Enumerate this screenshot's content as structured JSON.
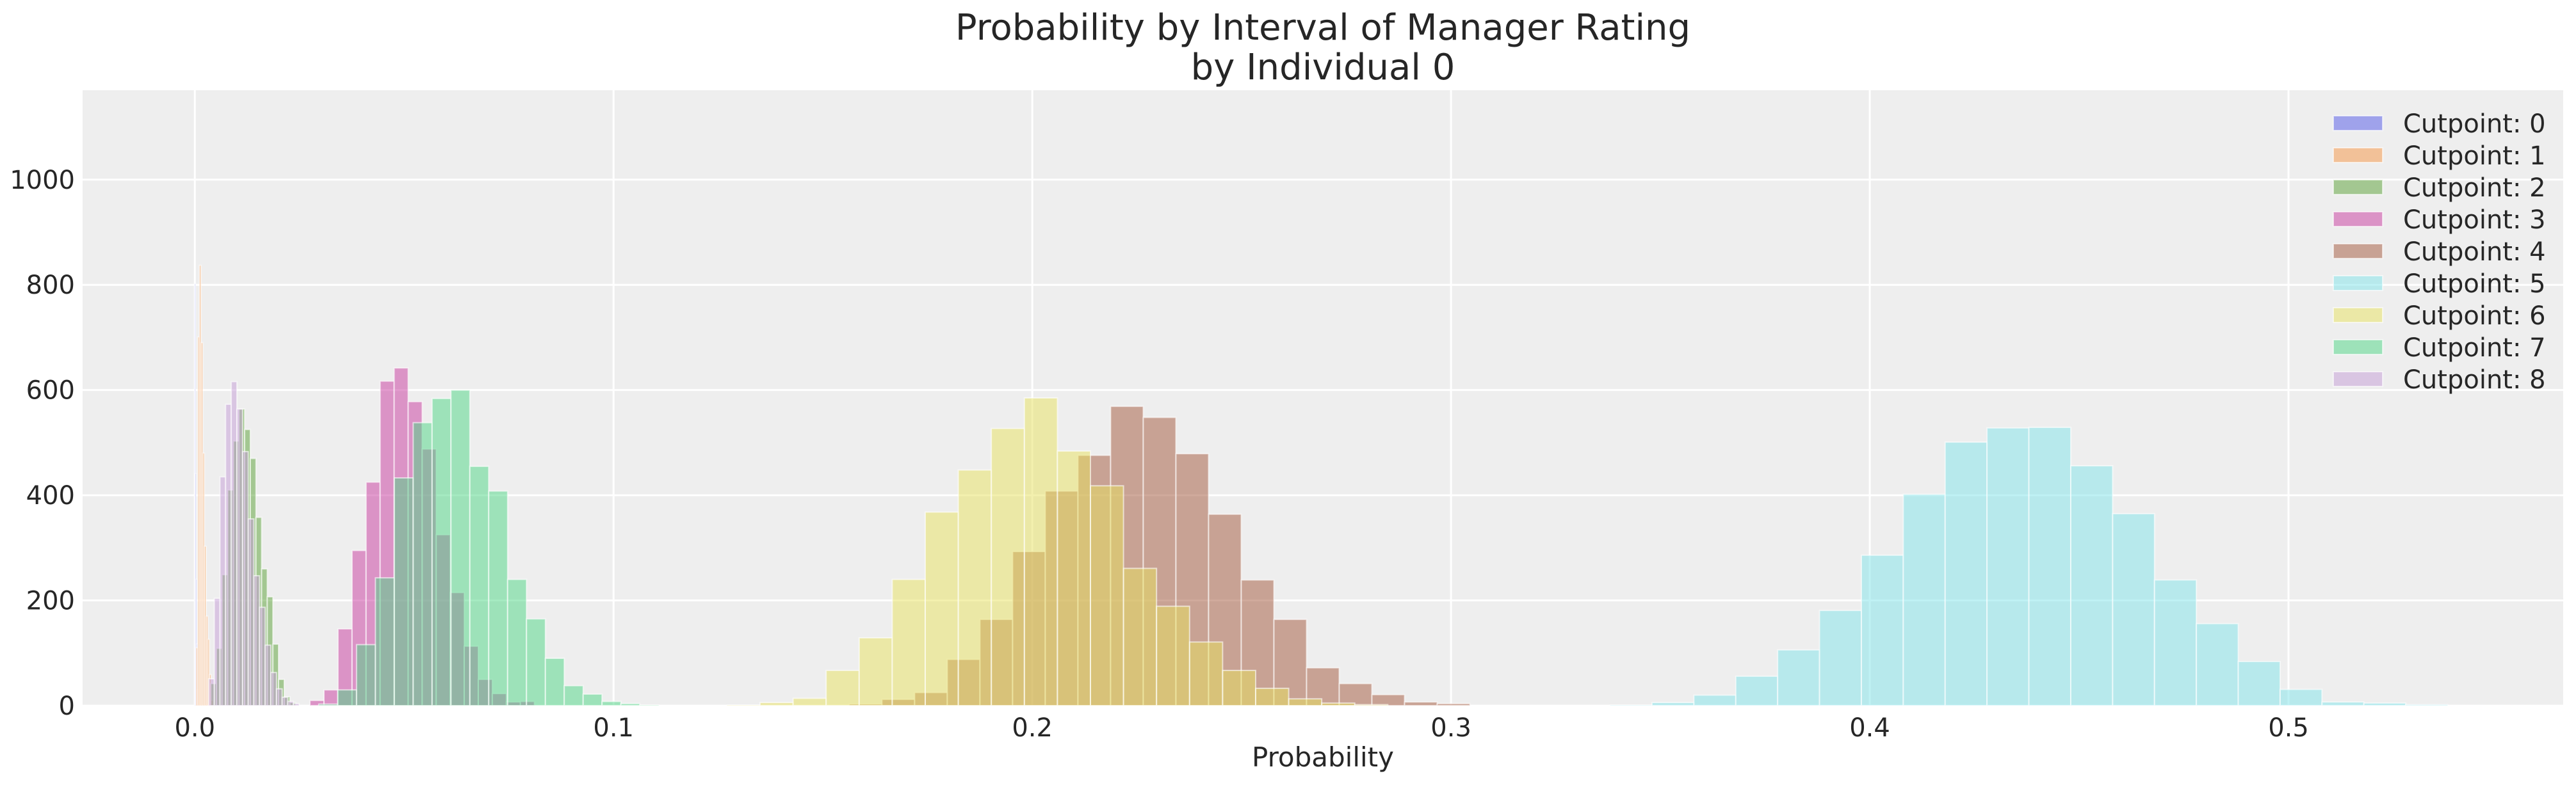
{
  "chart_data": {
    "type": "histogram",
    "title": "Probability by Interval of Manager Rating",
    "subtitle": "by Individual 0",
    "xlabel": "Probability",
    "ylabel": "",
    "xlim": [
      -0.0268,
      0.5656
    ],
    "ylim": [
      0,
      1170
    ],
    "xticks": [
      0.0,
      0.1,
      0.2,
      0.3,
      0.4,
      0.5
    ],
    "xtick_labels": [
      "0.0",
      "0.1",
      "0.2",
      "0.3",
      "0.4",
      "0.5"
    ],
    "yticks": [
      0,
      200,
      400,
      600,
      800,
      1000
    ],
    "ytick_labels": [
      "0",
      "200",
      "400",
      "600",
      "800",
      "1000"
    ],
    "grid": true,
    "legend_position": "top-right",
    "series": [
      {
        "name": "Cutpoint: 0",
        "color": "#5055e8",
        "bin_start": 0.0,
        "bin_width": 0.00015,
        "counts": [
          802,
          441,
          240,
          117,
          30
        ]
      },
      {
        "name": "Cutpoint: 1",
        "color": "#f69342",
        "bin_start": 0.0003,
        "bin_width": 0.0004,
        "counts": [
          110,
          701,
          837,
          690,
          480,
          303,
          170,
          126,
          59,
          10
        ]
      },
      {
        "name": "Cutpoint: 2",
        "color": "#58a033",
        "bin_start": 0.0038,
        "bin_width": 0.00135,
        "counts": [
          42,
          109,
          249,
          410,
          503,
          564,
          525,
          470,
          358,
          260,
          207,
          117,
          50,
          17,
          6
        ]
      },
      {
        "name": "Cutpoint: 3",
        "color": "#c8389e",
        "bin_start": 0.0275,
        "bin_width": 0.00335,
        "counts": [
          10,
          30,
          146,
          295,
          425,
          617,
          642,
          578,
          488,
          325,
          215,
          113,
          50,
          23,
          7,
          8
        ]
      },
      {
        "name": "Cutpoint: 4",
        "color": "#a2563a",
        "bin_start": 0.1563,
        "bin_width": 0.0078,
        "counts": [
          3,
          12,
          25,
          88,
          164,
          293,
          408,
          476,
          569,
          548,
          479,
          364,
          239,
          164,
          72,
          42,
          21,
          7,
          4
        ]
      },
      {
        "name": "Cutpoint: 5",
        "color": "#80e4ea",
        "bin_start": 0.338,
        "bin_width": 0.01,
        "counts": [
          1,
          6,
          20,
          56,
          106,
          181,
          286,
          402,
          501,
          528,
          529,
          456,
          365,
          239,
          156,
          84,
          31,
          7,
          5,
          2
        ]
      },
      {
        "name": "Cutpoint: 6",
        "color": "#e8e25e",
        "bin_start": 0.1271,
        "bin_width": 0.00789,
        "counts": [
          1,
          6,
          14,
          67,
          129,
          240,
          368,
          448,
          527,
          585,
          484,
          418,
          261,
          189,
          121,
          67,
          33,
          13,
          5,
          2
        ]
      },
      {
        "name": "Cutpoint: 7",
        "color": "#4cd684",
        "bin_start": 0.0296,
        "bin_width": 0.00451,
        "counts": [
          3,
          30,
          116,
          243,
          433,
          538,
          584,
          600,
          455,
          408,
          240,
          165,
          90,
          38,
          22,
          8,
          4,
          1
        ]
      },
      {
        "name": "Cutpoint: 8",
        "color": "#c49cd6",
        "bin_start": 0.0033,
        "bin_width": 0.00135,
        "counts": [
          51,
          204,
          435,
          573,
          616,
          564,
          483,
          355,
          247,
          187,
          115,
          63,
          32,
          16,
          8,
          4
        ]
      }
    ]
  }
}
